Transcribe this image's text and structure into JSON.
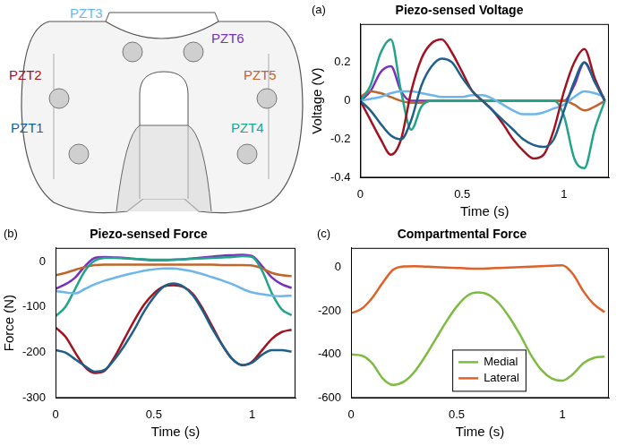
{
  "diagram": {
    "sensors": [
      {
        "label": "PZT1",
        "color": "#1f5f8b"
      },
      {
        "label": "PZT2",
        "color": "#a01422"
      },
      {
        "label": "PZT3",
        "color": "#6db6ec"
      },
      {
        "label": "PZT4",
        "color": "#23a488"
      },
      {
        "label": "PZT5",
        "color": "#c0652b"
      },
      {
        "label": "PZT6",
        "color": "#7a30bd"
      }
    ]
  },
  "chart_data": [
    {
      "type": "line",
      "panel_label": "(a)",
      "title": "Piezo-sensed Voltage",
      "x_label": "Time (s)",
      "y_label": "Voltage (V)",
      "xlim": [
        0,
        1.22
      ],
      "xticks": [
        0,
        0.5,
        1
      ],
      "ylim": [
        -0.4,
        0.4
      ],
      "yticks": [
        -0.4,
        -0.2,
        0,
        0.2
      ],
      "grid": false,
      "x": [
        0,
        0.05,
        0.1,
        0.15,
        0.2,
        0.25,
        0.3,
        0.35,
        0.4,
        0.45,
        0.5,
        0.55,
        0.6,
        0.65,
        0.7,
        0.75,
        0.8,
        0.85,
        0.9,
        0.95,
        1,
        1.05,
        1.1,
        1.15,
        1.2
      ],
      "series": [
        {
          "name": "PZT1",
          "color": "#1f5f8b",
          "values": [
            0,
            -0.05,
            -0.12,
            -0.18,
            -0.2,
            -0.1,
            0.08,
            0.18,
            0.22,
            0.2,
            0.12,
            0.05,
            0,
            -0.05,
            -0.1,
            -0.15,
            -0.2,
            -0.23,
            -0.24,
            -0.2,
            -0.05,
            0.1,
            0.2,
            0.1,
            0
          ]
        },
        {
          "name": "PZT2",
          "color": "#a01422",
          "values": [
            0,
            -0.1,
            -0.2,
            -0.28,
            -0.2,
            0.05,
            0.22,
            0.3,
            0.32,
            0.25,
            0.15,
            0.05,
            0,
            -0.05,
            -0.12,
            -0.2,
            -0.26,
            -0.3,
            -0.28,
            -0.15,
            0.05,
            0.2,
            0.27,
            0.12,
            0
          ]
        },
        {
          "name": "PZT3",
          "color": "#6db6ec",
          "values": [
            0,
            0.01,
            0.02,
            0.04,
            0.05,
            0.05,
            0.04,
            0.03,
            0.02,
            0.02,
            0.02,
            0.03,
            0.03,
            0.01,
            -0.02,
            -0.05,
            -0.07,
            -0.07,
            -0.06,
            -0.04,
            -0.02,
            0.02,
            0.05,
            0.04,
            0.02
          ]
        },
        {
          "name": "PZT4",
          "color": "#23a488",
          "values": [
            0,
            0.08,
            0.25,
            0.32,
            0.05,
            -0.15,
            -0.03,
            0,
            0,
            0,
            0,
            0,
            0,
            0,
            0,
            0,
            0,
            0,
            0,
            0,
            -0.08,
            -0.3,
            -0.35,
            -0.15,
            0
          ]
        },
        {
          "name": "PZT5",
          "color": "#c0652b",
          "values": [
            0.02,
            0.05,
            0.04,
            0.02,
            0,
            -0.01,
            -0.01,
            0,
            0,
            0,
            0,
            0,
            0,
            0,
            0,
            0,
            0,
            0,
            0,
            0,
            0,
            -0.02,
            -0.05,
            -0.03,
            0
          ]
        },
        {
          "name": "PZT6",
          "color": "#7a30bd",
          "values": [
            0,
            0.05,
            0.15,
            0.18,
            0.05,
            0,
            0,
            0,
            0,
            0,
            0,
            0,
            0,
            0,
            0,
            0,
            0,
            0,
            0,
            0,
            0,
            0.08,
            0.2,
            0.1,
            0
          ]
        }
      ]
    },
    {
      "type": "line",
      "panel_label": "(b)",
      "title": "Piezo-sensed Force",
      "x_label": "Time (s)",
      "y_label": "Force (N)",
      "xlim": [
        0,
        1.22
      ],
      "xticks": [
        0,
        0.5,
        1
      ],
      "ylim": [
        -300,
        30
      ],
      "yticks": [
        -300,
        -200,
        -100,
        0
      ],
      "grid": false,
      "x": [
        0,
        0.05,
        0.1,
        0.15,
        0.2,
        0.25,
        0.3,
        0.35,
        0.4,
        0.45,
        0.5,
        0.55,
        0.6,
        0.65,
        0.7,
        0.75,
        0.8,
        0.85,
        0.9,
        0.95,
        1,
        1.05,
        1.1,
        1.15,
        1.2
      ],
      "series": [
        {
          "name": "PZT1",
          "color": "#1f5f8b",
          "values": [
            -195,
            -200,
            -215,
            -230,
            -242,
            -238,
            -215,
            -185,
            -150,
            -110,
            -78,
            -55,
            -48,
            -55,
            -75,
            -110,
            -150,
            -185,
            -215,
            -228,
            -222,
            -205,
            -195,
            -195,
            -198
          ]
        },
        {
          "name": "PZT2",
          "color": "#a01422",
          "values": [
            -145,
            -165,
            -200,
            -232,
            -245,
            -240,
            -210,
            -170,
            -130,
            -95,
            -70,
            -55,
            -52,
            -56,
            -72,
            -105,
            -145,
            -185,
            -215,
            -228,
            -220,
            -195,
            -170,
            -155,
            -150
          ]
        },
        {
          "name": "PZT3",
          "color": "#6db6ec",
          "values": [
            -65,
            -68,
            -70,
            -60,
            -50,
            -42,
            -36,
            -30,
            -25,
            -20,
            -17,
            -15,
            -15,
            -18,
            -22,
            -28,
            -35,
            -42,
            -50,
            -60,
            -68,
            -72,
            -75,
            -76,
            -75
          ]
        },
        {
          "name": "PZT4",
          "color": "#23a488",
          "values": [
            -120,
            -100,
            -60,
            -20,
            2,
            8,
            8,
            7,
            6,
            5,
            4,
            4,
            4,
            5,
            6,
            7,
            8,
            9,
            10,
            12,
            10,
            -20,
            -70,
            -105,
            -118
          ]
        },
        {
          "name": "PZT5",
          "color": "#c0652b",
          "values": [
            -30,
            -25,
            -18,
            -12,
            -8,
            -7,
            -7,
            -7,
            -7,
            -7,
            -7,
            -7,
            -7,
            -7,
            -7,
            -7,
            -7,
            -8,
            -8,
            -8,
            -9,
            -15,
            -25,
            -30,
            -32
          ]
        },
        {
          "name": "PZT6",
          "color": "#7a30bd",
          "values": [
            -60,
            -50,
            -35,
            -10,
            8,
            10,
            9,
            8,
            6,
            4,
            3,
            3,
            4,
            5,
            7,
            9,
            11,
            13,
            14,
            15,
            12,
            -10,
            -35,
            -50,
            -58
          ]
        }
      ]
    },
    {
      "type": "line",
      "panel_label": "(c)",
      "title": "Compartmental Force",
      "x_label": "Time (s)",
      "xlim": [
        0,
        1.22
      ],
      "xticks": [
        0,
        0.5,
        1
      ],
      "ylim": [
        -600,
        90
      ],
      "yticks": [
        -600,
        -400,
        -200,
        0
      ],
      "grid": false,
      "legend": "bottom",
      "x": [
        0,
        0.05,
        0.1,
        0.15,
        0.2,
        0.25,
        0.3,
        0.35,
        0.4,
        0.45,
        0.5,
        0.55,
        0.6,
        0.65,
        0.7,
        0.75,
        0.8,
        0.85,
        0.9,
        0.95,
        1,
        1.05,
        1.1,
        1.15,
        1.2
      ],
      "series": [
        {
          "name": "Medial",
          "color": "#7dbb42",
          "values": [
            -400,
            -405,
            -440,
            -510,
            -540,
            -525,
            -480,
            -410,
            -330,
            -250,
            -180,
            -130,
            -115,
            -125,
            -165,
            -230,
            -310,
            -400,
            -470,
            -510,
            -520,
            -490,
            -440,
            -415,
            -410
          ]
        },
        {
          "name": "Lateral",
          "color": "#e0602a",
          "values": [
            -210,
            -190,
            -140,
            -70,
            -10,
            5,
            6,
            4,
            2,
            0,
            -2,
            -4,
            -5,
            -4,
            -2,
            0,
            2,
            4,
            6,
            8,
            10,
            -30,
            -110,
            -170,
            -205
          ]
        }
      ]
    }
  ]
}
